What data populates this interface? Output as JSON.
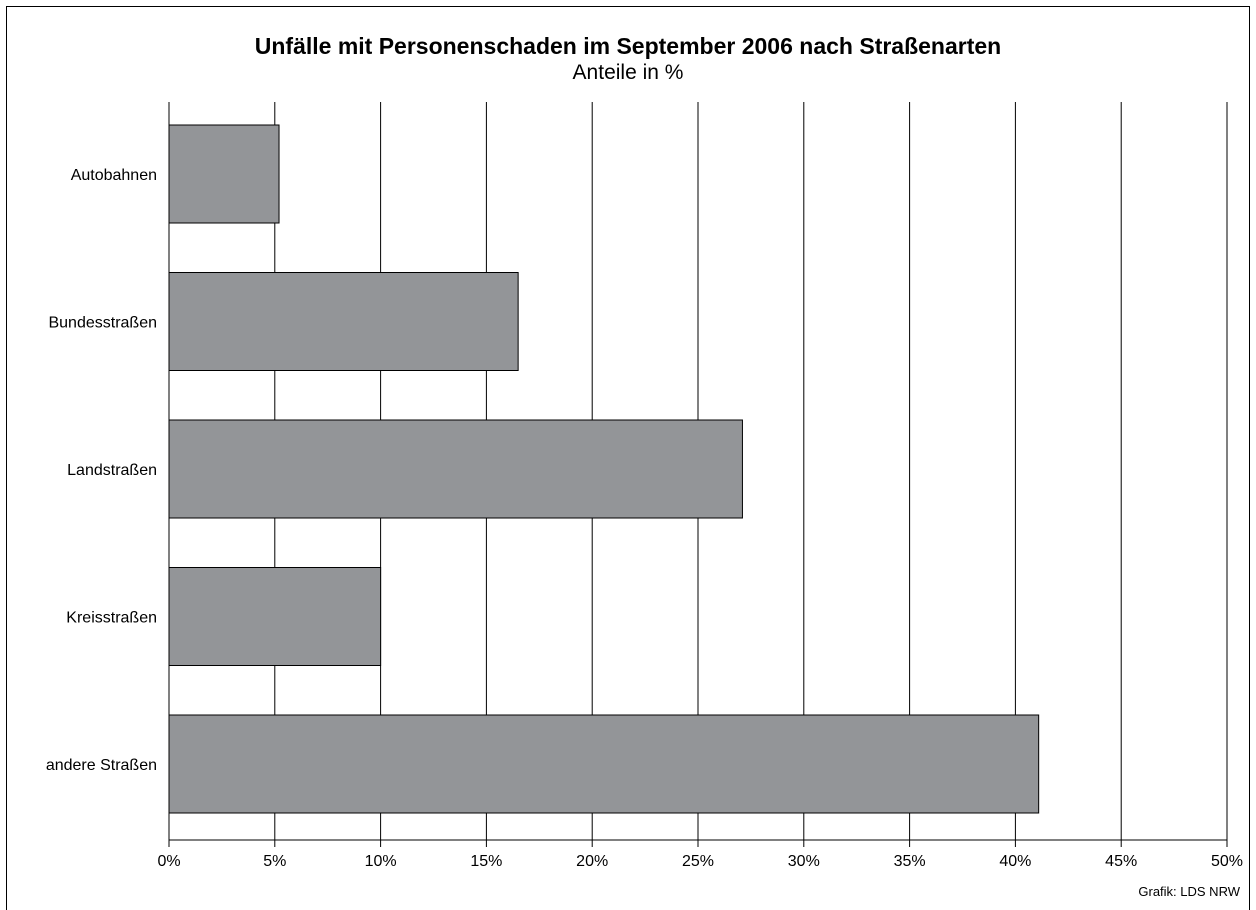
{
  "chart_data": {
    "type": "bar",
    "orientation": "horizontal",
    "title": "Unfälle mit Personenschaden im September 2006 nach Straßenarten",
    "subtitle": "Anteile in %",
    "categories": [
      "Autobahnen",
      "Bundesstraßen",
      "Landstraßen",
      "Kreisstraßen",
      "andere Straßen"
    ],
    "values": [
      5.2,
      16.5,
      27.1,
      10.0,
      41.1
    ],
    "xlim": [
      0,
      50
    ],
    "xticks": [
      0,
      5,
      10,
      15,
      20,
      25,
      30,
      35,
      40,
      45,
      50
    ],
    "xtick_labels": [
      "0%",
      "5%",
      "10%",
      "15%",
      "20%",
      "25%",
      "30%",
      "35%",
      "40%",
      "45%",
      "50%"
    ],
    "grid": "vertical",
    "bar_color": "#939598",
    "source": "Grafik: LDS NRW"
  }
}
